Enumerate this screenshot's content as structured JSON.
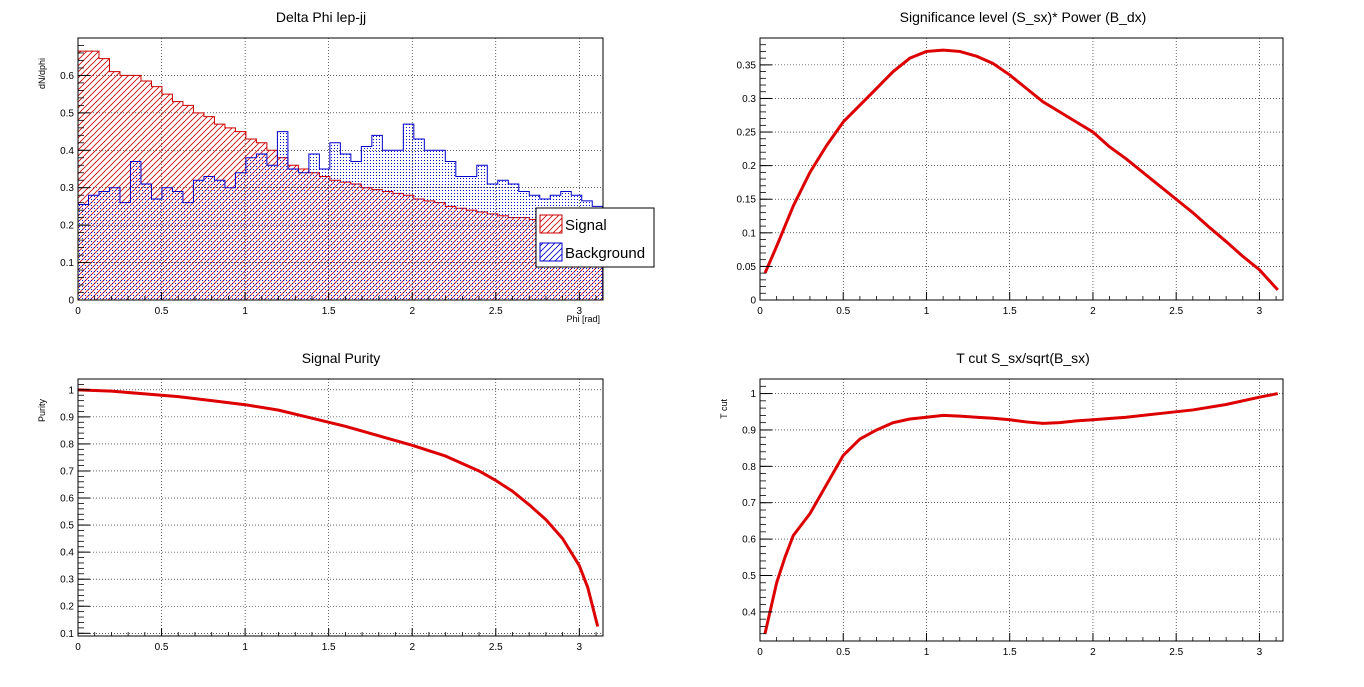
{
  "chart_data": [
    {
      "type": "histogram",
      "title": "Delta Phi lep-jj",
      "xlabel": "Phi [rad]",
      "ylabel": "dN/dphi",
      "xlim": [
        0,
        3.1416
      ],
      "ylim": [
        0,
        0.7
      ],
      "xticks": [
        "0",
        "0.5",
        "1",
        "1.5",
        "2",
        "2.5",
        "3"
      ],
      "yticks": [
        "0",
        "0.1",
        "0.2",
        "0.3",
        "0.4",
        "0.5",
        "0.6"
      ],
      "grid": true,
      "legend_position": "right-middle",
      "bin_width": 0.0628,
      "series": [
        {
          "name": "Signal",
          "color": "#cc0000",
          "fill": "red-hatch",
          "values": [
            0.665,
            0.665,
            0.645,
            0.61,
            0.6,
            0.6,
            0.585,
            0.57,
            0.55,
            0.53,
            0.52,
            0.5,
            0.49,
            0.47,
            0.46,
            0.45,
            0.43,
            0.42,
            0.4,
            0.38,
            0.36,
            0.35,
            0.34,
            0.33,
            0.32,
            0.315,
            0.31,
            0.3,
            0.295,
            0.29,
            0.285,
            0.28,
            0.27,
            0.265,
            0.26,
            0.25,
            0.245,
            0.24,
            0.235,
            0.23,
            0.225,
            0.22,
            0.22,
            0.215,
            0.215,
            0.21,
            0.21,
            0.205,
            0.205,
            0.21
          ]
        },
        {
          "name": "Background",
          "color": "#0000cc",
          "fill": "blue-dots",
          "values": [
            0.255,
            0.28,
            0.29,
            0.3,
            0.26,
            0.37,
            0.31,
            0.27,
            0.3,
            0.29,
            0.26,
            0.32,
            0.33,
            0.32,
            0.3,
            0.34,
            0.38,
            0.39,
            0.36,
            0.45,
            0.35,
            0.34,
            0.39,
            0.35,
            0.42,
            0.39,
            0.37,
            0.41,
            0.44,
            0.4,
            0.4,
            0.47,
            0.43,
            0.4,
            0.4,
            0.37,
            0.33,
            0.33,
            0.36,
            0.31,
            0.32,
            0.31,
            0.29,
            0.28,
            0.27,
            0.28,
            0.29,
            0.28,
            0.265,
            0.25
          ]
        }
      ]
    },
    {
      "type": "line",
      "title": "Significance level (S_sx)* Power (B_dx)",
      "xlabel": "",
      "ylabel": "",
      "xlim": [
        0,
        3.1416
      ],
      "ylim": [
        0,
        0.39
      ],
      "xticks": [
        "0",
        "0.5",
        "1",
        "1.5",
        "2",
        "2.5",
        "3"
      ],
      "yticks": [
        "0",
        "0.05",
        "0.1",
        "0.15",
        "0.2",
        "0.25",
        "0.3",
        "0.35"
      ],
      "grid": true,
      "series": [
        {
          "color": "#dd0000",
          "x": [
            0.03,
            0.1,
            0.2,
            0.3,
            0.4,
            0.5,
            0.6,
            0.7,
            0.8,
            0.9,
            1.0,
            1.1,
            1.2,
            1.3,
            1.4,
            1.5,
            1.6,
            1.7,
            1.8,
            1.9,
            2.0,
            2.1,
            2.2,
            2.3,
            2.4,
            2.5,
            2.6,
            2.7,
            2.8,
            2.9,
            3.0,
            3.11
          ],
          "y": [
            0.04,
            0.08,
            0.14,
            0.19,
            0.23,
            0.265,
            0.29,
            0.315,
            0.34,
            0.36,
            0.37,
            0.372,
            0.37,
            0.363,
            0.352,
            0.335,
            0.315,
            0.295,
            0.28,
            0.265,
            0.25,
            0.228,
            0.21,
            0.19,
            0.17,
            0.15,
            0.13,
            0.108,
            0.087,
            0.065,
            0.045,
            0.015
          ]
        }
      ]
    },
    {
      "type": "line",
      "title": "Signal Purity",
      "xlabel": "",
      "ylabel": "Purity",
      "xlim": [
        0,
        3.1416
      ],
      "ylim": [
        0.09,
        1.04
      ],
      "xticks": [
        "0",
        "0.5",
        "1",
        "1.5",
        "2",
        "2.5",
        "3"
      ],
      "yticks": [
        "0.1",
        "0.2",
        "0.3",
        "0.4",
        "0.5",
        "0.6",
        "0.7",
        "0.8",
        "0.9",
        "1"
      ],
      "grid": true,
      "series": [
        {
          "color": "#dd0000",
          "x": [
            0.0,
            0.2,
            0.4,
            0.6,
            0.8,
            1.0,
            1.2,
            1.4,
            1.6,
            1.8,
            2.0,
            2.2,
            2.4,
            2.5,
            2.6,
            2.7,
            2.8,
            2.9,
            3.0,
            3.05,
            3.11
          ],
          "y": [
            1.0,
            0.995,
            0.985,
            0.975,
            0.96,
            0.945,
            0.925,
            0.895,
            0.865,
            0.83,
            0.795,
            0.755,
            0.7,
            0.665,
            0.625,
            0.575,
            0.52,
            0.45,
            0.35,
            0.27,
            0.125
          ]
        }
      ]
    },
    {
      "type": "line",
      "title": "T cut S_sx/sqrt(B_sx)",
      "xlabel": "",
      "ylabel": "T cut",
      "xlim": [
        0,
        3.1416
      ],
      "ylim": [
        0.32,
        1.04
      ],
      "xticks": [
        "0",
        "0.5",
        "1",
        "1.5",
        "2",
        "2.5",
        "3"
      ],
      "yticks": [
        "0.4",
        "0.5",
        "0.6",
        "0.7",
        "0.8",
        "0.9",
        "1"
      ],
      "grid": true,
      "series": [
        {
          "color": "#dd0000",
          "x": [
            0.03,
            0.06,
            0.1,
            0.15,
            0.2,
            0.3,
            0.4,
            0.5,
            0.6,
            0.7,
            0.8,
            0.9,
            1.0,
            1.1,
            1.2,
            1.3,
            1.4,
            1.5,
            1.6,
            1.7,
            1.8,
            1.9,
            2.0,
            2.2,
            2.4,
            2.6,
            2.8,
            3.0,
            3.11
          ],
          "y": [
            0.34,
            0.4,
            0.48,
            0.55,
            0.61,
            0.67,
            0.75,
            0.83,
            0.875,
            0.9,
            0.92,
            0.93,
            0.935,
            0.94,
            0.938,
            0.935,
            0.932,
            0.928,
            0.922,
            0.918,
            0.92,
            0.925,
            0.928,
            0.935,
            0.945,
            0.955,
            0.97,
            0.99,
            1.0
          ]
        }
      ]
    }
  ]
}
